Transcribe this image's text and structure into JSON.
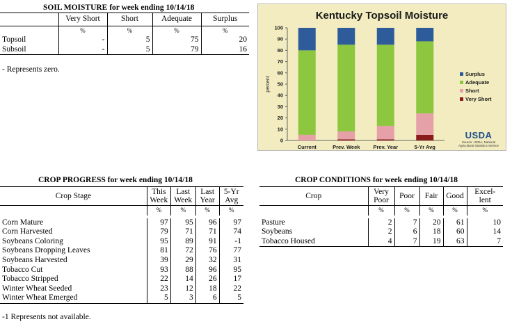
{
  "soil": {
    "title": "SOIL MOISTURE for week ending 10/14/18",
    "headers": [
      "",
      "Very Short",
      "Short",
      "Adequate",
      "Surplus"
    ],
    "unit_row": [
      "",
      "%",
      "%",
      "%",
      "%"
    ],
    "rows": [
      {
        "label": "Topsoil",
        "very_short": "-",
        "short": "5",
        "adequate": "75",
        "surplus": "20"
      },
      {
        "label": "Subsoil",
        "very_short": "-",
        "short": "5",
        "adequate": "79",
        "surplus": "16"
      }
    ],
    "footnote": "- Represents zero."
  },
  "progress": {
    "title": "CROP PROGRESS for week ending 10/14/18",
    "headers": [
      "Crop Stage",
      "This Week",
      "Last Week",
      "Last Year",
      "5-Yr Avg"
    ],
    "unit_row": [
      "",
      "%",
      "%",
      "%",
      "%"
    ],
    "rows": [
      {
        "stage": "Corn Mature",
        "v": [
          "97",
          "95",
          "96",
          "97"
        ]
      },
      {
        "stage": "Corn Harvested",
        "v": [
          "79",
          "71",
          "71",
          "74"
        ]
      },
      {
        "stage": "Soybeans Coloring",
        "v": [
          "95",
          "89",
          "91",
          "-1"
        ]
      },
      {
        "stage": "Soybeans Dropping Leaves",
        "v": [
          "81",
          "72",
          "76",
          "77"
        ]
      },
      {
        "stage": "Soybeans Harvested",
        "v": [
          "39",
          "29",
          "32",
          "31"
        ]
      },
      {
        "stage": "Tobacco Cut",
        "v": [
          "93",
          "88",
          "96",
          "95"
        ]
      },
      {
        "stage": "Tobacco Stripped",
        "v": [
          "22",
          "14",
          "26",
          "17"
        ]
      },
      {
        "stage": "Winter Wheat Seeded",
        "v": [
          "23",
          "12",
          "18",
          "22"
        ]
      },
      {
        "stage": "Winter Wheat Emerged",
        "v": [
          "5",
          "3",
          "6",
          "5"
        ]
      }
    ],
    "footnote": "-1 Represents not available."
  },
  "conditions": {
    "title": "CROP CONDITIONS for week ending 10/14/18",
    "headers": [
      "Crop",
      "Very Poor",
      "Poor",
      "Fair",
      "Good",
      "Excel-lent"
    ],
    "unit_row": [
      "",
      "%",
      "%",
      "%",
      "%",
      "%"
    ],
    "rows": [
      {
        "crop": "Pasture",
        "v": [
          "2",
          "7",
          "20",
          "61",
          "10"
        ]
      },
      {
        "crop": "Soybeans",
        "v": [
          "2",
          "6",
          "18",
          "60",
          "14"
        ]
      },
      {
        "crop": "Tobacco Housed",
        "v": [
          "4",
          "7",
          "19",
          "63",
          "7"
        ]
      }
    ]
  },
  "chart_data": {
    "type": "bar",
    "stacked": true,
    "title": "Kentucky Topsoil Moisture",
    "ylabel": "percent",
    "ylim": [
      0,
      100
    ],
    "yticks": [
      0,
      10,
      20,
      30,
      40,
      50,
      60,
      70,
      80,
      90,
      100
    ],
    "categories": [
      "Current",
      "Prev. Week",
      "Prev. Year",
      "5-Yr Avg"
    ],
    "series": [
      {
        "name": "Very Short",
        "color": "#8b1a1a",
        "values": [
          0,
          1,
          1,
          5
        ]
      },
      {
        "name": "Short",
        "color": "#e6a0a8",
        "values": [
          5,
          7,
          12,
          19
        ]
      },
      {
        "name": "Adequate",
        "color": "#8dc63f",
        "values": [
          75,
          77,
          72,
          64
        ]
      },
      {
        "name": "Surplus",
        "color": "#2e5c9a",
        "values": [
          20,
          15,
          15,
          12
        ]
      }
    ],
    "legend_order": [
      "Surplus",
      "Adequate",
      "Short",
      "Very Short"
    ],
    "legend_position": "right",
    "grid": false
  },
  "usda": {
    "logo": "USDA",
    "source": "Source: USDA, National Agricultural Statistics Service"
  }
}
